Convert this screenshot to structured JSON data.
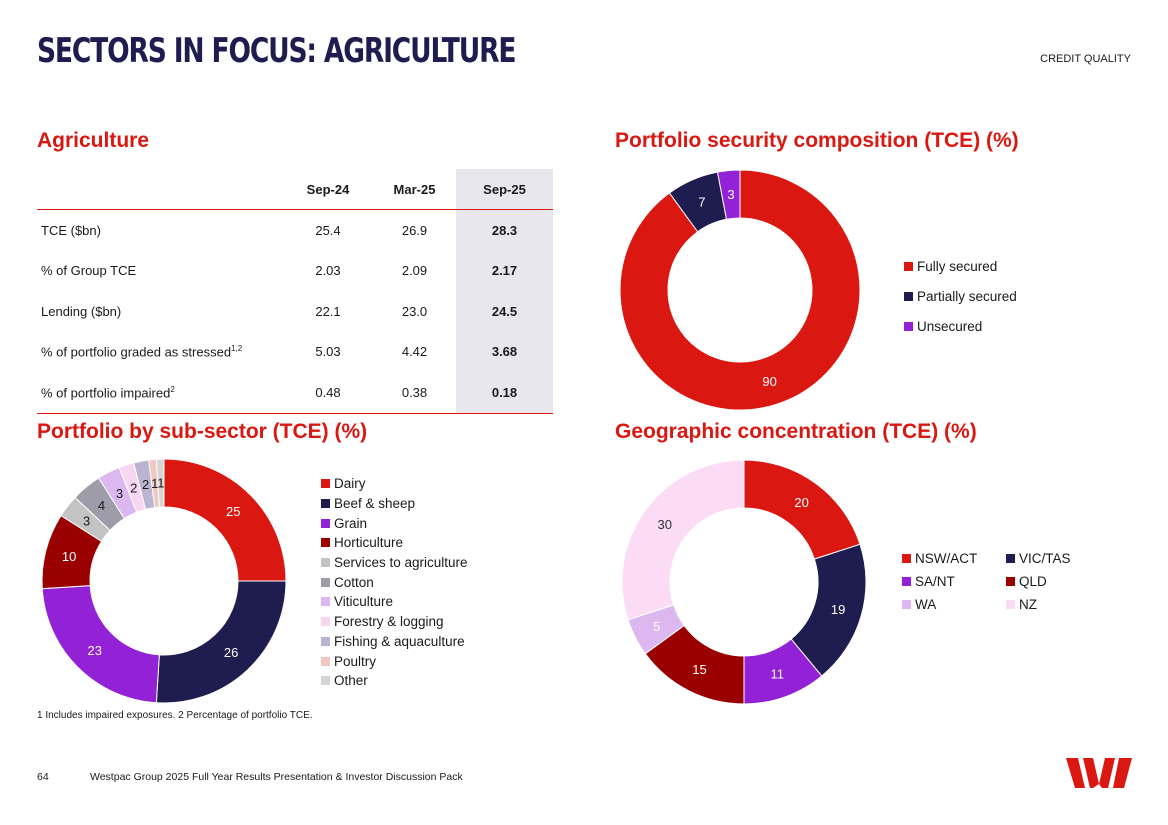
{
  "header": {
    "title": "SECTORS IN FOCUS: AGRICULTURE",
    "section": "CREDIT QUALITY"
  },
  "agriculture": {
    "title": "Agriculture",
    "columns": [
      "Sep-24",
      "Mar-25",
      "Sep-25"
    ],
    "rows": [
      {
        "label": "TCE ($bn)",
        "sup": "",
        "values": [
          "25.4",
          "26.9",
          "28.3"
        ]
      },
      {
        "label": "% of Group TCE",
        "sup": "",
        "values": [
          "2.03",
          "2.09",
          "2.17"
        ]
      },
      {
        "label": "Lending ($bn)",
        "sup": "",
        "values": [
          "22.1",
          "23.0",
          "24.5"
        ]
      },
      {
        "label": "% of portfolio graded as stressed",
        "sup": "1,2",
        "values": [
          "5.03",
          "4.42",
          "3.68"
        ]
      },
      {
        "label": "% of portfolio impaired",
        "sup": "2",
        "values": [
          "0.48",
          "0.38",
          "0.18"
        ]
      }
    ]
  },
  "chart_data": [
    {
      "id": "security",
      "type": "pie",
      "title": "Portfolio security composition (TCE) (%)",
      "categories": [
        "Fully secured",
        "Partially secured",
        "Unsecured"
      ],
      "values": [
        90,
        7,
        3
      ],
      "colors": [
        "#da1710",
        "#1f1c4f",
        "#9321d6"
      ],
      "label_colors": [
        "#ffffff",
        "#ffffff",
        "#ffffff"
      ]
    },
    {
      "id": "subsector",
      "type": "pie",
      "title": "Portfolio by sub-sector (TCE) (%)",
      "categories": [
        "Dairy",
        "Beef & sheep",
        "Grain",
        "Horticulture",
        "Services to agriculture",
        "Cotton",
        "Viticulture",
        "Forestry & logging",
        "Fishing & aquaculture",
        "Poultry",
        "Other"
      ],
      "values": [
        25,
        26,
        23,
        10,
        3,
        4,
        3,
        2,
        2,
        1,
        1
      ],
      "colors": [
        "#da1710",
        "#1f1c4f",
        "#9321d6",
        "#9b0000",
        "#c3c3c3",
        "#9f9caa",
        "#ddb8f0",
        "#f8d6f2",
        "#b8b4d2",
        "#f2c7c2",
        "#d5d5d5"
      ],
      "label_colors": [
        "#ffffff",
        "#ffffff",
        "#ffffff",
        "#ffffff",
        "#1a1a1a",
        "#1a1a1a",
        "#1a1a1a",
        "#1a1a1a",
        "#1a1a1a",
        "#1a1a1a",
        "#1a1a1a"
      ]
    },
    {
      "id": "geographic",
      "type": "pie",
      "title": "Geographic concentration (TCE) (%)",
      "categories": [
        "NSW/ACT",
        "VIC/TAS",
        "SA/NT",
        "QLD",
        "WA",
        "NZ"
      ],
      "values": [
        20,
        19,
        11,
        15,
        5,
        30
      ],
      "colors": [
        "#da1710",
        "#1f1c4f",
        "#9321d6",
        "#9b0000",
        "#ddb8f0",
        "#fcdbf4"
      ],
      "label_colors": [
        "#ffffff",
        "#ffffff",
        "#ffffff",
        "#ffffff",
        "#ffffff",
        "#333333"
      ]
    }
  ],
  "footnote": "1 Includes impaired exposures. 2 Percentage of portfolio TCE.",
  "footer": {
    "page_number": "64",
    "text": "Westpac Group 2025 Full Year Results Presentation & Investor Discussion Pack"
  },
  "brand": {
    "logo": "westpac-logo",
    "color": "#da1710"
  }
}
